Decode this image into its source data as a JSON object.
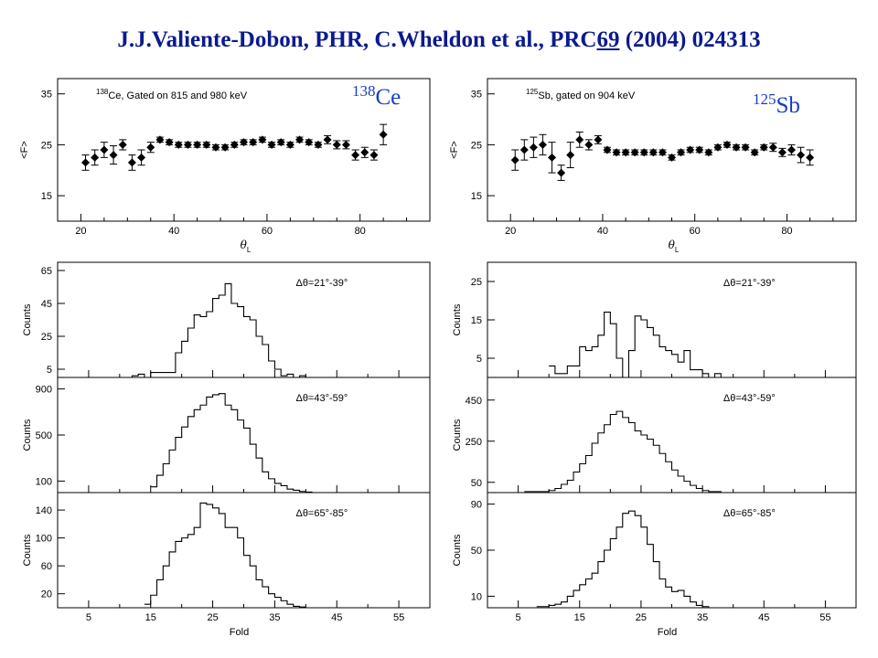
{
  "header": {
    "pre": "J.J.Valiente-Dobon, PHR, C.Wheldon et al., PRC",
    "volume": "69",
    "post": " (2004) 024313"
  },
  "colors": {
    "header": "#0b1a8f",
    "nucleus_label": "#1a3cc8",
    "ink": "#000000"
  },
  "nuclei": [
    {
      "mass": "138",
      "symbol": "Ce"
    },
    {
      "mass": "125",
      "symbol": "Sb"
    }
  ],
  "chart_data": [
    {
      "type": "scatter",
      "id": "ce-mean-fold",
      "title_mass": "138",
      "title": "Ce, Gated on 815 and 980 keV",
      "xlabel": "θ",
      "xlabel_sub": "L",
      "ylabel": "<F>",
      "xlim": [
        15,
        95
      ],
      "ylim": [
        10,
        38
      ],
      "xticks": [
        20,
        40,
        60,
        80
      ],
      "yticks": [
        15,
        25,
        35
      ],
      "x": [
        21,
        23,
        25,
        27,
        29,
        31,
        33,
        35,
        37,
        39,
        41,
        43,
        45,
        47,
        49,
        51,
        53,
        55,
        57,
        59,
        61,
        63,
        65,
        67,
        69,
        71,
        73,
        75,
        77,
        79,
        81,
        83,
        85
      ],
      "y": [
        21.5,
        22.5,
        24,
        23,
        25,
        21.5,
        22.5,
        24.5,
        26,
        25.5,
        25,
        25,
        25,
        25,
        24.5,
        24.5,
        25,
        25.5,
        25.5,
        26,
        25,
        25.5,
        25,
        26,
        25.5,
        25,
        26,
        25,
        25,
        23,
        23.5,
        23,
        27
      ],
      "err": [
        1.5,
        1.5,
        1.5,
        1.8,
        1.0,
        1.5,
        1.5,
        1.0,
        0.5,
        0.5,
        0.5,
        0.5,
        0.5,
        0.5,
        0.5,
        0.5,
        0.5,
        0.5,
        0.5,
        0.5,
        0.5,
        0.5,
        0.5,
        0.5,
        0.5,
        0.5,
        0.8,
        0.8,
        0.8,
        1.0,
        1.0,
        1.0,
        2.0
      ]
    },
    {
      "type": "scatter",
      "id": "sb-mean-fold",
      "title_mass": "125",
      "title": "Sb, gated on 904 keV",
      "xlabel": "θ",
      "xlabel_sub": "L",
      "ylabel": "<F>",
      "xlim": [
        15,
        95
      ],
      "ylim": [
        10,
        38
      ],
      "xticks": [
        20,
        40,
        60,
        80
      ],
      "yticks": [
        15,
        25,
        35
      ],
      "x": [
        21,
        23,
        25,
        27,
        29,
        31,
        33,
        35,
        37,
        39,
        41,
        43,
        45,
        47,
        49,
        51,
        53,
        55,
        57,
        59,
        61,
        63,
        65,
        67,
        69,
        71,
        73,
        75,
        77,
        79,
        81,
        83,
        85
      ],
      "y": [
        22,
        24,
        24.5,
        25,
        22.5,
        19.5,
        23,
        26,
        25,
        26,
        24,
        23.5,
        23.5,
        23.5,
        23.5,
        23.5,
        23.5,
        22.5,
        23.5,
        24,
        24,
        23.5,
        24.5,
        25,
        24.5,
        24.5,
        23.5,
        24.5,
        24.5,
        23.5,
        24,
        23,
        22.5
      ],
      "err": [
        2.0,
        2.0,
        2.0,
        2.0,
        3.0,
        1.5,
        2.5,
        1.5,
        1.0,
        0.8,
        0.5,
        0.5,
        0.5,
        0.5,
        0.5,
        0.5,
        0.5,
        0.5,
        0.5,
        0.5,
        0.5,
        0.5,
        0.5,
        0.5,
        0.5,
        0.5,
        0.5,
        0.5,
        0.8,
        0.8,
        1.0,
        1.5,
        1.5
      ]
    },
    {
      "type": "step",
      "id": "ce-fold-21-39",
      "annotation": "Δθ=21°-39°",
      "ylabel": "Counts",
      "xlim": [
        0,
        60
      ],
      "ylim": [
        0,
        70
      ],
      "xticks": [
        5,
        15,
        25,
        35,
        45,
        55
      ],
      "yticks": [
        5,
        25,
        45,
        65
      ],
      "x_start": 10,
      "bin_width": 1,
      "values": [
        0,
        0,
        1,
        2,
        0,
        3,
        3,
        3,
        3,
        15,
        22,
        30,
        38,
        37,
        40,
        48,
        50,
        57,
        45,
        43,
        37,
        35,
        25,
        20,
        10,
        5,
        1,
        2,
        0,
        1,
        0,
        0,
        0,
        0
      ]
    },
    {
      "type": "step",
      "id": "ce-fold-43-59",
      "annotation": "Δθ=43°-59°",
      "ylabel": "Counts",
      "xlim": [
        0,
        60
      ],
      "ylim": [
        0,
        1000
      ],
      "xticks": [
        5,
        15,
        25,
        35,
        45,
        55
      ],
      "yticks": [
        100,
        500,
        900
      ],
      "x_start": 15,
      "bin_width": 1,
      "values": [
        50,
        150,
        250,
        370,
        480,
        570,
        660,
        720,
        760,
        830,
        850,
        860,
        760,
        720,
        630,
        560,
        420,
        300,
        180,
        120,
        80,
        60,
        30,
        20,
        10,
        5,
        0,
        0,
        0,
        0
      ]
    },
    {
      "type": "step",
      "id": "ce-fold-65-85",
      "annotation": "Δθ=65°-85°",
      "ylabel": "Counts",
      "xlim": [
        0,
        60
      ],
      "ylim": [
        0,
        165
      ],
      "xticks": [
        5,
        15,
        25,
        35,
        45,
        55
      ],
      "yticks": [
        20,
        60,
        100,
        140
      ],
      "x_start": 14,
      "bin_width": 1,
      "values": [
        5,
        18,
        40,
        60,
        80,
        95,
        100,
        105,
        115,
        150,
        148,
        143,
        135,
        115,
        115,
        100,
        75,
        60,
        40,
        30,
        20,
        15,
        10,
        5,
        2,
        1,
        0,
        0,
        0,
        0
      ]
    },
    {
      "type": "step",
      "id": "sb-fold-21-39",
      "annotation": "Δθ=21°-39°",
      "ylabel": "Counts",
      "xlim": [
        0,
        60
      ],
      "ylim": [
        0,
        30
      ],
      "xticks": [
        5,
        15,
        25,
        35,
        45,
        55
      ],
      "yticks": [
        5,
        15,
        25
      ],
      "x_start": 10,
      "bin_width": 1,
      "values": [
        3,
        1,
        1,
        3,
        3,
        8,
        7,
        8,
        11,
        17,
        14,
        5,
        0,
        7,
        16,
        15,
        13,
        11,
        8,
        7,
        6,
        4,
        7,
        2,
        2,
        1,
        0,
        1,
        0,
        0
      ]
    },
    {
      "type": "step",
      "id": "sb-fold-43-59",
      "annotation": "Δθ=43°-59°",
      "ylabel": "Counts",
      "xlim": [
        0,
        60
      ],
      "ylim": [
        0,
        560
      ],
      "xticks": [
        5,
        15,
        25,
        35,
        45,
        55
      ],
      "yticks": [
        50,
        250,
        450
      ],
      "x_start": 6,
      "bin_width": 1,
      "values": [
        5,
        5,
        5,
        5,
        10,
        20,
        40,
        60,
        100,
        140,
        180,
        240,
        290,
        330,
        380,
        395,
        365,
        340,
        300,
        280,
        260,
        230,
        190,
        150,
        110,
        80,
        55,
        35,
        20,
        10,
        5,
        5,
        0
      ]
    },
    {
      "type": "step",
      "id": "sb-fold-65-85",
      "annotation": "Δθ=65°-85°",
      "ylabel": "Counts",
      "xlim": [
        0,
        60
      ],
      "ylim": [
        0,
        100
      ],
      "xticks": [
        5,
        15,
        25,
        35,
        45,
        55
      ],
      "yticks": [
        10,
        50,
        90
      ],
      "x_start": 8,
      "bin_width": 1,
      "values": [
        1,
        1,
        2,
        3,
        5,
        10,
        15,
        20,
        25,
        30,
        40,
        50,
        60,
        70,
        82,
        84,
        80,
        70,
        55,
        40,
        25,
        18,
        14,
        15,
        10,
        5,
        2,
        1,
        0,
        0
      ]
    }
  ],
  "fold_xlabel": "Fold"
}
